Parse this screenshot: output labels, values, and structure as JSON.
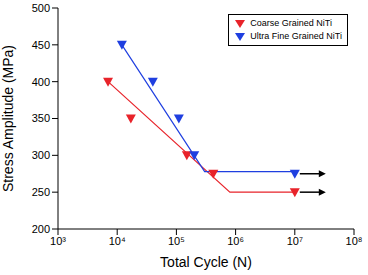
{
  "chart_data": {
    "type": "scatter",
    "log": "x",
    "grid": false,
    "legend": "upper right",
    "x_label": "Total Cycle (N)",
    "y_label": "Stress Amplitude (MPa)",
    "xlim": [
      1000,
      100000000
    ],
    "xticks": [
      {
        "value": 1000,
        "label": "10³"
      },
      {
        "value": 10000,
        "label": "10⁴"
      },
      {
        "value": 100000,
        "label": "10⁵"
      },
      {
        "value": 1000000,
        "label": "10⁶"
      },
      {
        "value": 10000000,
        "label": "10⁷"
      },
      {
        "value": 100000000,
        "label": "10⁸"
      }
    ],
    "ylim": [
      200,
      500
    ],
    "yticks": [
      200,
      250,
      300,
      350,
      400,
      450,
      500
    ],
    "series": [
      {
        "name": "Coarse Grained NiTi",
        "color": "#e8232a",
        "marker": "triangle-down",
        "x": [
          7000,
          17000,
          150000,
          420000,
          10000000
        ],
        "values": [
          400,
          350,
          300,
          275,
          250
        ],
        "fit_x": [
          7000,
          800000,
          10000000
        ],
        "fit_values": [
          400,
          250,
          250
        ]
      },
      {
        "name": "Ultra Fine Grained NiTi",
        "color": "#1f3fe0",
        "marker": "triangle-down",
        "x": [
          12000,
          40000,
          110000,
          200000,
          10000000
        ],
        "values": [
          450,
          400,
          350,
          300,
          275
        ],
        "fit_x": [
          12000,
          300000,
          10000000
        ],
        "fit_values": [
          450,
          278,
          278
        ]
      }
    ]
  }
}
